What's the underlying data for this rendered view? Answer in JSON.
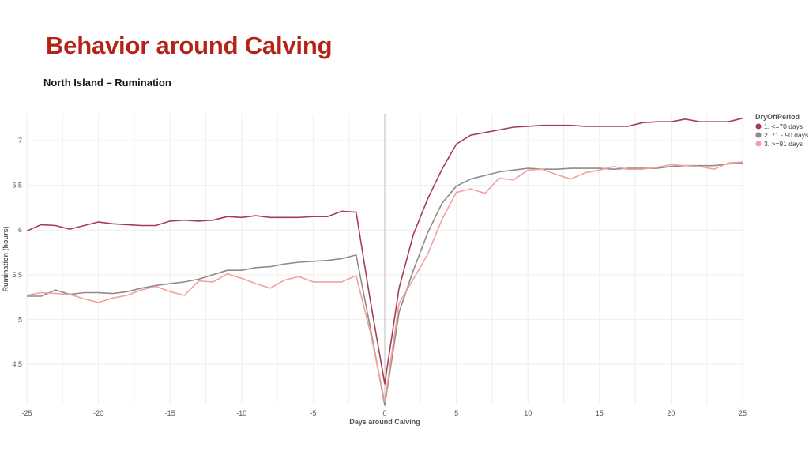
{
  "slide": {
    "title": "Behavior around Calving",
    "subtitle": "North Island – Rumination"
  },
  "chart_data": {
    "type": "line",
    "xlabel": "Days around Calving",
    "ylabel": "Rumination (hours)",
    "xlim": [
      -25,
      25
    ],
    "ylim": [
      4.05,
      7.3
    ],
    "xticks": [
      -25,
      -20,
      -15,
      -10,
      -5,
      0,
      5,
      10,
      15,
      20,
      25
    ],
    "yticks": [
      4.5,
      5,
      5.5,
      6,
      6.5,
      7
    ],
    "grid": true,
    "legend": {
      "title": "DryOffPeriod",
      "position": "top-right"
    },
    "x": [
      -25,
      -24,
      -23,
      -22,
      -21,
      -20,
      -19,
      -18,
      -17,
      -16,
      -15,
      -14,
      -13,
      -12,
      -11,
      -10,
      -9,
      -8,
      -7,
      -6,
      -5,
      -4,
      -3,
      -2,
      -1,
      0,
      1,
      2,
      3,
      4,
      5,
      6,
      7,
      8,
      9,
      10,
      11,
      12,
      13,
      14,
      15,
      16,
      17,
      18,
      19,
      20,
      21,
      22,
      23,
      24,
      25
    ],
    "series": [
      {
        "name": "1. <=70 days",
        "color": "#a63c5a",
        "values": [
          5.99,
          6.06,
          6.05,
          6.01,
          6.05,
          6.09,
          6.07,
          6.06,
          6.05,
          6.05,
          6.1,
          6.11,
          6.1,
          6.11,
          6.15,
          6.14,
          6.16,
          6.14,
          6.14,
          6.14,
          6.15,
          6.15,
          6.21,
          6.2,
          5.2,
          4.28,
          5.35,
          5.95,
          6.35,
          6.68,
          6.96,
          7.06,
          7.09,
          7.12,
          7.15,
          7.16,
          7.17,
          7.17,
          7.17,
          7.16,
          7.16,
          7.16,
          7.16,
          7.2,
          7.21,
          7.21,
          7.24,
          7.21,
          7.21,
          7.21,
          7.25
        ]
      },
      {
        "name": "2. 71 - 90 days",
        "color": "#8c8c8c",
        "values": [
          5.26,
          5.26,
          5.33,
          5.28,
          5.3,
          5.3,
          5.29,
          5.31,
          5.35,
          5.38,
          5.4,
          5.42,
          5.45,
          5.5,
          5.55,
          5.55,
          5.58,
          5.59,
          5.62,
          5.64,
          5.65,
          5.66,
          5.68,
          5.72,
          4.9,
          4.04,
          5.08,
          5.55,
          5.97,
          6.3,
          6.49,
          6.57,
          6.61,
          6.65,
          6.67,
          6.69,
          6.68,
          6.68,
          6.69,
          6.69,
          6.69,
          6.68,
          6.69,
          6.69,
          6.69,
          6.71,
          6.72,
          6.72,
          6.72,
          6.74,
          6.75
        ]
      },
      {
        "name": "3. >=91 days",
        "color": "#f2a0a0",
        "values": [
          5.27,
          5.3,
          5.29,
          5.28,
          5.23,
          5.19,
          5.24,
          5.27,
          5.33,
          5.37,
          5.31,
          5.27,
          5.43,
          5.42,
          5.51,
          5.46,
          5.4,
          5.35,
          5.44,
          5.48,
          5.42,
          5.42,
          5.42,
          5.49,
          4.85,
          4.08,
          5.18,
          5.45,
          5.73,
          6.12,
          6.42,
          6.46,
          6.41,
          6.58,
          6.56,
          6.67,
          6.68,
          6.62,
          6.57,
          6.64,
          6.67,
          6.71,
          6.68,
          6.68,
          6.7,
          6.73,
          6.72,
          6.71,
          6.68,
          6.75,
          6.76
        ]
      }
    ]
  }
}
